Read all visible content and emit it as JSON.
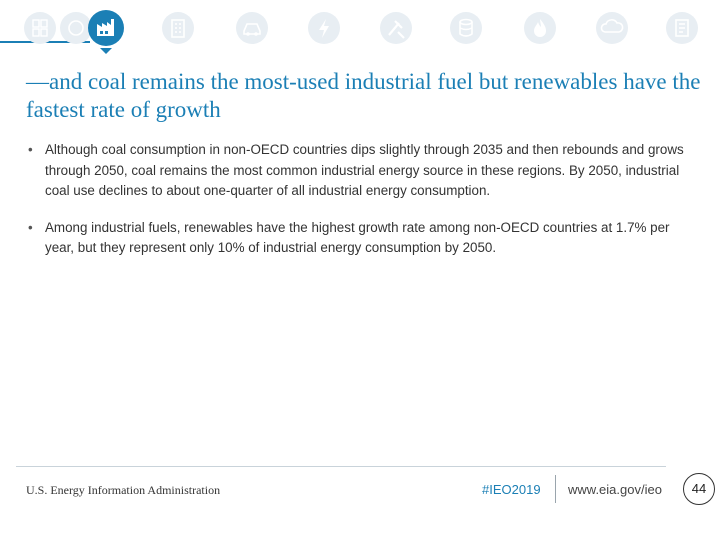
{
  "nav": {
    "icons": [
      {
        "name": "overview-icon",
        "active": false
      },
      {
        "name": "industrial-icon",
        "active": true
      },
      {
        "name": "buildings-icon",
        "active": false
      },
      {
        "name": "transportation-icon",
        "active": false
      },
      {
        "name": "electricity-icon",
        "active": false
      },
      {
        "name": "petroleum-icon",
        "active": false
      },
      {
        "name": "liquids-icon",
        "active": false
      },
      {
        "name": "natural-gas-icon",
        "active": false
      },
      {
        "name": "co2-emissions-icon",
        "active": false
      },
      {
        "name": "appendix-icon",
        "active": false
      }
    ],
    "accent_color": "#1b7fb5",
    "inactive_color": "#e8eef3"
  },
  "slide": {
    "title": "—and coal remains the most-used industrial fuel but renewables have the fastest rate of growth",
    "bullet_glyph": "•",
    "bullets": [
      "Although coal consumption in non-OECD countries dips slightly through 2035 and then rebounds and grows through 2050, coal remains the most common industrial energy source in these regions. By 2050, industrial coal use declines to about one-quarter of all industrial energy consumption.",
      "Among industrial fuels, renewables have the highest growth rate among non-OECD countries at 1.7% per year, but they represent only 10% of industrial energy consumption by 2050."
    ]
  },
  "footer": {
    "agency": "U.S. Energy Information Administration",
    "hashtag": "#IEO2019",
    "website": "www.eia.gov/ieo",
    "page_number": "44"
  }
}
